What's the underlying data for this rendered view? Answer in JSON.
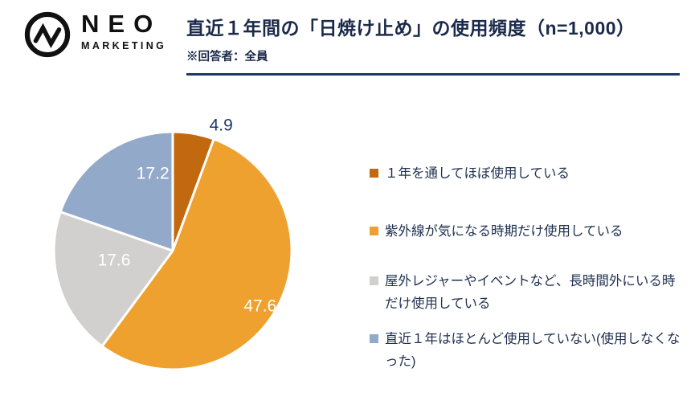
{
  "logo": {
    "name": "NEO",
    "sub": "MARKETING"
  },
  "header": {
    "title": "直近１年間の「日焼け止め」の使用頻度（n=1,000）",
    "subtitle": "※回答者：全員"
  },
  "colors": {
    "title_navy": "#1B2A4A",
    "divider_navy": "#1F3864",
    "legend_text": "#1F3050"
  },
  "chart_data": {
    "type": "pie",
    "title": "直近１年間の「日焼け止め」の使用頻度（n=1,000）",
    "sample_note": "※回答者：全員",
    "unit": "percent",
    "start_angle_deg": 0,
    "direction": "clockwise",
    "legend_position": "right",
    "slices": [
      {
        "label": "１年を通してほぼ使用している",
        "value": 4.9,
        "display": "4.9",
        "color": "#C2690F",
        "label_color": "#1F3864",
        "label_r": 1.13,
        "label_shift_deg": 11
      },
      {
        "label": "紫外線が気になる時期だけ使用している",
        "value": 47.6,
        "display": "47.6",
        "color": "#EFA12F",
        "label_color": "#FFFFFF",
        "label_r": 0.87,
        "label_shift_deg": 4
      },
      {
        "label": "屋外レジャーやイベントなど、長時間外にいる時だけ使用している",
        "value": 17.6,
        "display": "17.6",
        "color": "#D1D0CE",
        "label_color": "#FFFFFF",
        "label_r": 0.5,
        "label_shift_deg": 8
      },
      {
        "label": "直近１年はほとんど使用していない(使用しなくなった)",
        "value": 17.2,
        "display": "17.2",
        "color": "#93A9C9",
        "label_color": "#FFFFFF",
        "label_r": 0.67,
        "label_shift_deg": 21
      }
    ]
  }
}
